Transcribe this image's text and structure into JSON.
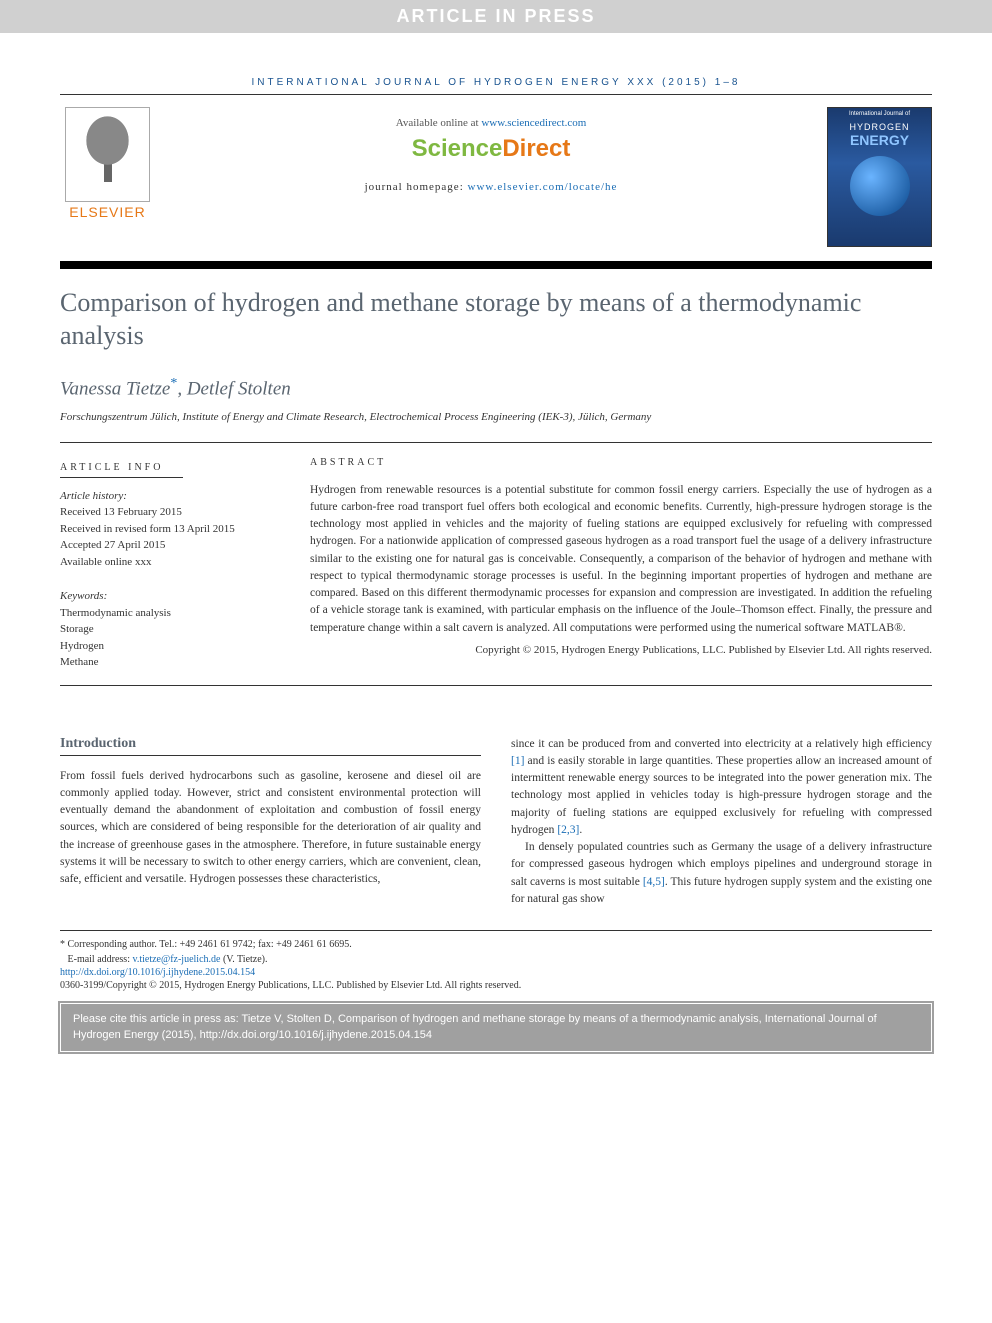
{
  "banner": "ARTICLE IN PRESS",
  "journal_header": "INTERNATIONAL JOURNAL OF HYDROGEN ENERGY XXX (2015) 1–8",
  "available_online_prefix": "Available online at ",
  "available_online_url": "www.sciencedirect.com",
  "sd_logo_left": "Science",
  "sd_logo_right": "Direct",
  "homepage_prefix": "journal homepage: ",
  "homepage_url": "www.elsevier.com/locate/he",
  "elsevier_label": "ELSEVIER",
  "cover": {
    "top": "International Journal of",
    "hydrogen": "HYDROGEN",
    "energy": "ENERGY"
  },
  "title": "Comparison of hydrogen and methane storage by means of a thermodynamic analysis",
  "authors_line1": "Vanessa Tietze",
  "corr_mark": "*",
  "authors_line2": ", Detlef Stolten",
  "affiliation": "Forschungszentrum Jülich, Institute of Energy and Climate Research, Electrochemical Process Engineering (IEK-3), Jülich, Germany",
  "article_info_label": "ARTICLE INFO",
  "abstract_label": "ABSTRACT",
  "history": {
    "title": "Article history:",
    "received": "Received 13 February 2015",
    "revised": "Received in revised form 13 April 2015",
    "accepted": "Accepted 27 April 2015",
    "online": "Available online xxx"
  },
  "keywords": {
    "title": "Keywords:",
    "items": [
      "Thermodynamic analysis",
      "Storage",
      "Hydrogen",
      "Methane"
    ]
  },
  "abstract_text": "Hydrogen from renewable resources is a potential substitute for common fossil energy carriers. Especially the use of hydrogen as a future carbon-free road transport fuel offers both ecological and economic benefits. Currently, high-pressure hydrogen storage is the technology most applied in vehicles and the majority of fueling stations are equipped exclusively for refueling with compressed hydrogen. For a nationwide application of compressed gaseous hydrogen as a road transport fuel the usage of a delivery infrastructure similar to the existing one for natural gas is conceivable. Consequently, a comparison of the behavior of hydrogen and methane with respect to typical thermodynamic storage processes is useful. In the beginning important properties of hydrogen and methane are compared. Based on this different thermodynamic processes for expansion and compression are investigated. In addition the refueling of a vehicle storage tank is examined, with particular emphasis on the influence of the Joule–Thomson effect. Finally, the pressure and temperature change within a salt cavern is analyzed. All computations were performed using the numerical software MATLAB®.",
  "abstract_copyright": "Copyright © 2015, Hydrogen Energy Publications, LLC. Published by Elsevier Ltd. All rights reserved.",
  "intro_heading": "Introduction",
  "intro_col1": "From fossil fuels derived hydrocarbons such as gasoline, kerosene and diesel oil are commonly applied today. However, strict and consistent environmental protection will eventually demand the abandonment of exploitation and combustion of fossil energy sources, which are considered of being responsible for the deterioration of air quality and the increase of greenhouse gases in the atmosphere. Therefore, in future sustainable energy systems it will be necessary to switch to other energy carriers, which are convenient, clean, safe, efficient and versatile. Hydrogen possesses these characteristics,",
  "intro_col2_p1_a": "since it can be produced from and converted into electricity at a relatively high efficiency ",
  "intro_col2_p1_ref1": "[1]",
  "intro_col2_p1_b": " and is easily storable in large quantities. These properties allow an increased amount of intermittent renewable energy sources to be integrated into the power generation mix. The technology most applied in vehicles today is high-pressure hydrogen storage and the majority of fueling stations are equipped exclusively for refueling with compressed hydrogen ",
  "intro_col2_p1_ref2": "[2,3]",
  "intro_col2_p1_c": ".",
  "intro_col2_p2_a": "In densely populated countries such as Germany the usage of a delivery infrastructure for compressed gaseous hydrogen which employs pipelines and underground storage in salt caverns is most suitable ",
  "intro_col2_p2_ref": "[4,5]",
  "intro_col2_p2_b": ". This future hydrogen supply system and the existing one for natural gas show",
  "corr_note_label": "* Corresponding author.",
  "corr_note_tel": " Tel.: +49 2461 61 9742; fax: +49 2461 61 6695.",
  "email_label": "E-mail address: ",
  "email_addr": "v.tietze@fz-juelich.de",
  "email_suffix": " (V. Tietze).",
  "doi_url": "http://dx.doi.org/10.1016/j.ijhydene.2015.04.154",
  "issn_line": "0360-3199/Copyright © 2015, Hydrogen Energy Publications, LLC. Published by Elsevier Ltd. All rights reserved.",
  "cite_box": "Please cite this article in press as: Tietze V, Stolten D, Comparison of hydrogen and methane storage by means of a thermodynamic analysis, International Journal of Hydrogen Energy (2015), http://dx.doi.org/10.1016/j.ijhydene.2015.04.154",
  "colors": {
    "banner_bg": "#d0d0d0",
    "banner_fg": "#ffffff",
    "journal_blue": "#1a5490",
    "elsevier_orange": "#e67817",
    "sd_green": "#7fb841",
    "link_blue": "#1a6db5",
    "heading_gray": "#5a6570",
    "cite_bg": "#a0a0a0"
  }
}
